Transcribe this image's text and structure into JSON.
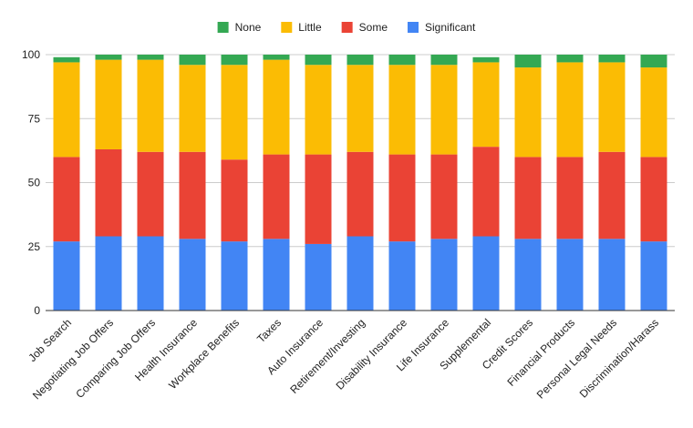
{
  "colors": {
    "None": "#34a853",
    "Little": "#fbbc04",
    "Some": "#ea4335",
    "Significant": "#4285f4",
    "grid": "#cccccc",
    "axis": "#333333"
  },
  "chart_data": {
    "type": "bar",
    "stacked": true,
    "title": "",
    "xlabel": "",
    "ylabel": "",
    "ylim": [
      0,
      100
    ],
    "yticks": [
      0,
      25,
      50,
      75,
      100
    ],
    "grid": true,
    "legend_position": "top",
    "legend_order": [
      "None",
      "Little",
      "Some",
      "Significant"
    ],
    "categories": [
      "Job Search",
      "Negotiating Job Offers",
      "Comparing Job Offers",
      "Health Insurance",
      "Workplace Benefits",
      "Taxes",
      "Auto Insurance",
      "Retirement/Investing",
      "Disability Insurance",
      "Life Insurance",
      "Supplemental",
      "Credit Scores",
      "Financial Products",
      "Personal Legal Needs",
      "Discrimination/Harass"
    ],
    "series": [
      {
        "name": "Significant",
        "values": [
          27,
          29,
          29,
          28,
          27,
          28,
          26,
          29,
          27,
          28,
          29,
          28,
          28,
          28,
          27
        ]
      },
      {
        "name": "Some",
        "values": [
          33,
          34,
          33,
          34,
          32,
          33,
          35,
          33,
          34,
          33,
          35,
          32,
          32,
          34,
          33
        ]
      },
      {
        "name": "Little",
        "values": [
          37,
          35,
          36,
          34,
          37,
          37,
          35,
          34,
          35,
          35,
          33,
          35,
          37,
          35,
          35
        ]
      },
      {
        "name": "None",
        "values": [
          2,
          2,
          2,
          4,
          4,
          2,
          4,
          4,
          4,
          4,
          2,
          5,
          3,
          3,
          5
        ]
      }
    ]
  }
}
